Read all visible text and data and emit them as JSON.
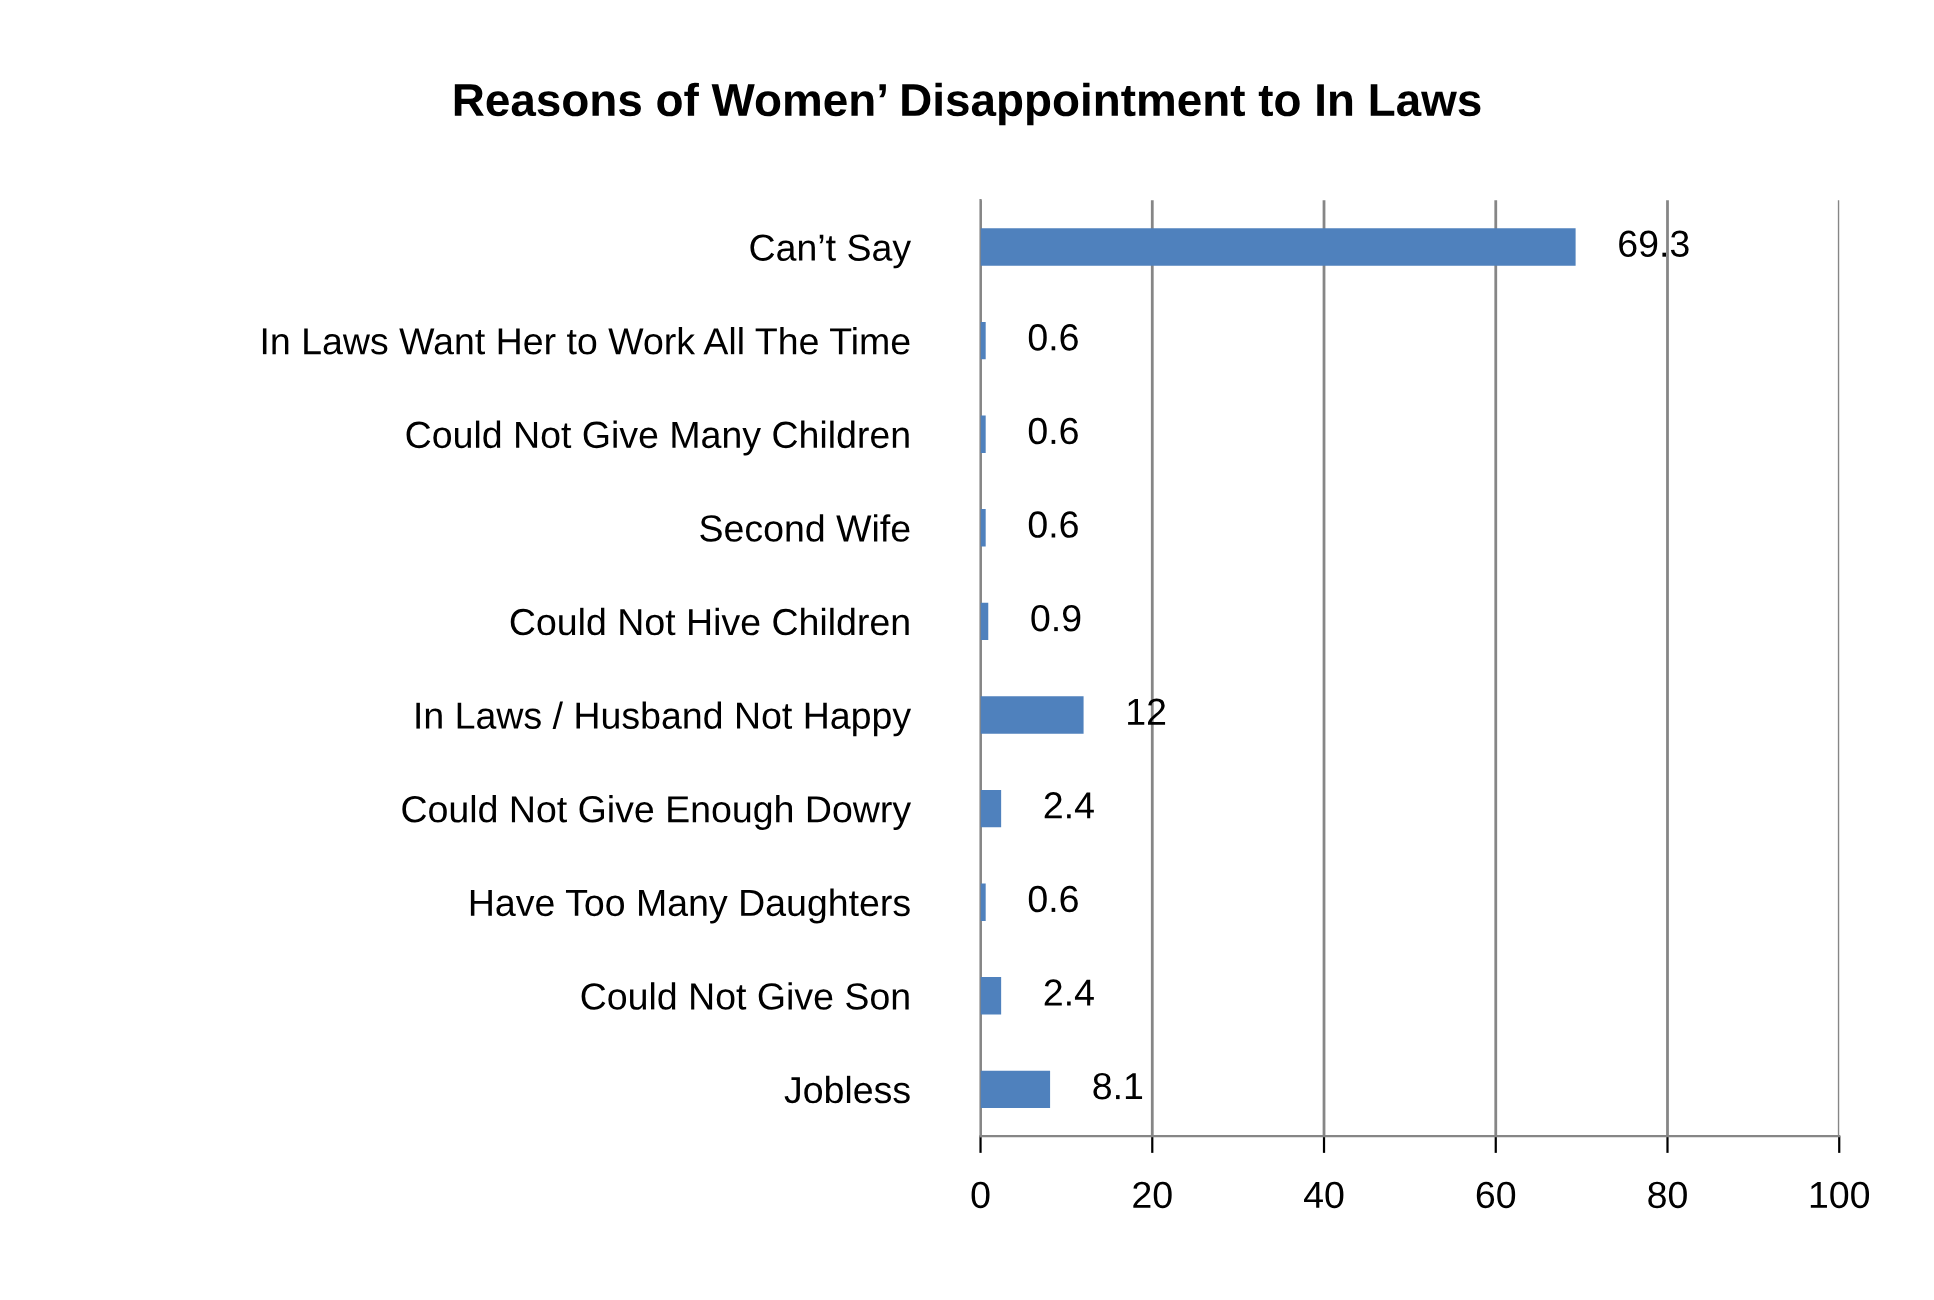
{
  "chart_data": {
    "type": "bar",
    "orientation": "horizontal",
    "title": "Reasons of Women’ Disappointment to In Laws",
    "categories": [
      "Can’t Say",
      "In Laws Want Her to Work All The Time",
      "Could Not Give Many Children",
      "Second Wife",
      "Could Not Hive Children",
      "In Laws / Husband Not Happy",
      "Could Not Give Enough Dowry",
      "Have Too Many Daughters",
      "Could Not Give Son",
      "Jobless"
    ],
    "values": [
      69.3,
      0.6,
      0.6,
      0.6,
      0.9,
      12,
      2.4,
      0.6,
      2.4,
      8.1
    ],
    "color": "#4f81bd",
    "xlim": [
      0,
      100
    ],
    "xticks": [
      0,
      20,
      40,
      60,
      80,
      100
    ],
    "grid": "x",
    "data_labels": true,
    "legend": false
  }
}
